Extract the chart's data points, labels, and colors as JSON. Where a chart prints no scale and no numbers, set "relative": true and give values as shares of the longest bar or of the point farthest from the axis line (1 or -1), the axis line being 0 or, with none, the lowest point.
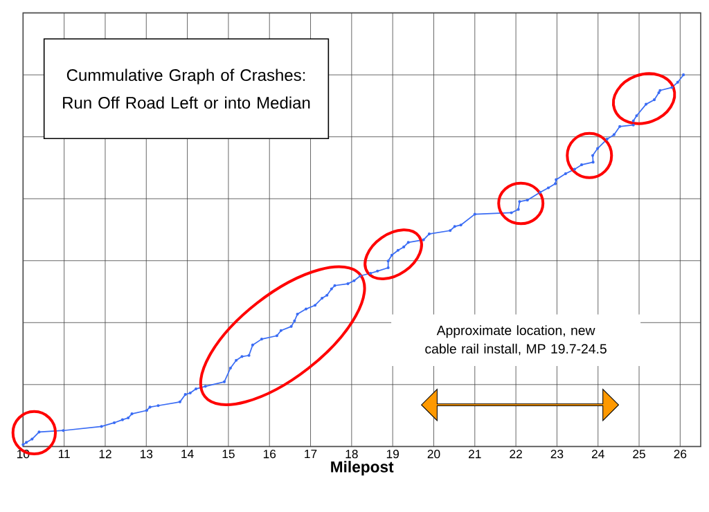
{
  "chart_data": {
    "type": "line",
    "title": "Cummulative Graph of Crashes: Run Off Road Left or into Median",
    "xlabel": "Milepost",
    "relative": true,
    "grid": true,
    "marker": "circle",
    "line_style": "solid",
    "xlim": [
      10,
      26.5
    ],
    "xticks": [
      10,
      11,
      12,
      13,
      14,
      15,
      16,
      17,
      18,
      19,
      20,
      21,
      22,
      23,
      24,
      25,
      26
    ],
    "annotations": [
      "Approximate location, new cable rail install, MP 19.7-24.5"
    ],
    "series": [
      {
        "color": "#3a6cf4",
        "x": [
          10.0,
          10.08,
          10.22,
          10.39,
          10.98,
          11.91,
          12.22,
          12.42,
          12.56,
          12.65,
          13.01,
          13.09,
          13.29,
          13.82,
          13.95,
          14.07,
          14.21,
          14.44,
          14.9,
          15.05,
          15.19,
          15.33,
          15.5,
          15.59,
          15.81,
          16.18,
          16.28,
          16.53,
          16.61,
          16.68,
          16.89,
          17.11,
          17.28,
          17.4,
          17.51,
          17.59,
          17.91,
          18.06,
          18.21,
          18.46,
          18.63,
          18.89,
          18.89,
          18.98,
          19.13,
          19.27,
          19.38,
          19.75,
          19.89,
          20.4,
          20.51,
          20.66,
          21.0,
          21.89,
          22.06,
          22.09,
          22.28,
          22.59,
          22.79,
          22.96,
          22.98,
          23.21,
          23.43,
          23.6,
          23.88,
          23.87,
          23.99,
          24.22,
          24.39,
          24.53,
          24.86,
          24.86,
          24.94,
          25.17,
          25.37,
          25.48,
          25.51,
          25.8,
          25.94,
          26.08
        ],
        "values": [
          0.005,
          0.011,
          0.02,
          0.039,
          0.043,
          0.054,
          0.064,
          0.072,
          0.077,
          0.088,
          0.097,
          0.106,
          0.11,
          0.12,
          0.14,
          0.144,
          0.155,
          0.162,
          0.174,
          0.211,
          0.232,
          0.242,
          0.245,
          0.273,
          0.289,
          0.298,
          0.312,
          0.323,
          0.338,
          0.356,
          0.37,
          0.38,
          0.399,
          0.407,
          0.424,
          0.433,
          0.438,
          0.446,
          0.459,
          0.466,
          0.472,
          0.481,
          0.499,
          0.515,
          0.528,
          0.537,
          0.549,
          0.556,
          0.572,
          0.581,
          0.592,
          0.596,
          0.625,
          0.629,
          0.638,
          0.659,
          0.663,
          0.684,
          0.696,
          0.707,
          0.718,
          0.734,
          0.746,
          0.758,
          0.765,
          0.783,
          0.802,
          0.827,
          0.839,
          0.861,
          0.865,
          0.876,
          0.89,
          0.921,
          0.933,
          0.952,
          0.958,
          0.966,
          0.98,
          1.0
        ]
      }
    ]
  }
}
